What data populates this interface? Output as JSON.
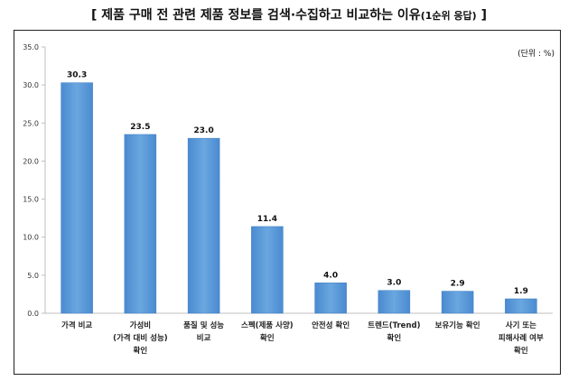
{
  "title": {
    "main": "[ 제품 구매 전 관련 제품 정보를 검색·수집하고 비교하는 이유",
    "suffix": "(1순위 응답)",
    "close": " ]"
  },
  "unit_label": "(단위 : %)",
  "chart_data": {
    "type": "bar",
    "categories": [
      [
        "가격 비교"
      ],
      [
        "가성비",
        "(가격 대비 성능)",
        "확인"
      ],
      [
        "품질 및 성능",
        "비교"
      ],
      [
        "스펙(제품 사양)",
        "확인"
      ],
      [
        "안전성 확인"
      ],
      [
        "트렌드(Trend)",
        "확인"
      ],
      [
        "보유기능 확인"
      ],
      [
        "사기 또는",
        "피해사례 여부",
        "확인"
      ]
    ],
    "values": [
      30.3,
      23.5,
      23.0,
      11.4,
      4.0,
      3.0,
      2.9,
      1.9
    ],
    "data_labels": [
      "30.3",
      "23.5",
      "23.0",
      "11.4",
      "4.0",
      "3.0",
      "2.9",
      "1.9"
    ],
    "yticks": [
      "0.0",
      "5.0",
      "10.0",
      "15.0",
      "20.0",
      "25.0",
      "30.0",
      "35.0"
    ],
    "ylim": [
      0,
      35
    ],
    "bar_color": "#5b9bd5",
    "bar_color_dark": "#3f7fc0",
    "grid": false
  }
}
